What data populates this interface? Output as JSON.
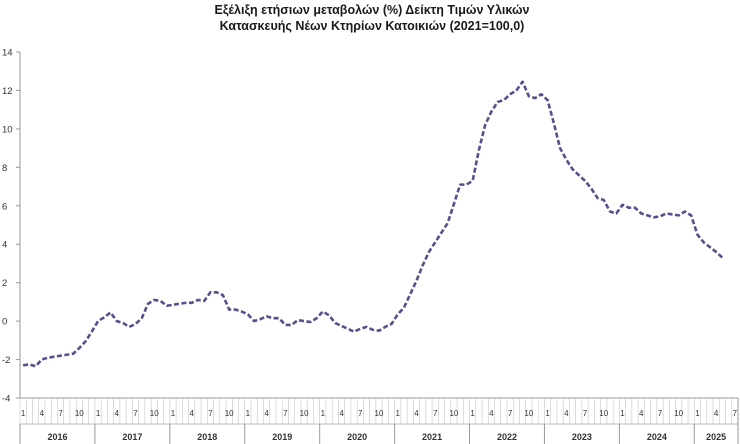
{
  "chart_data": {
    "type": "line",
    "title_line1": "Εξέλιξη ετήσιων μεταβολών (%) Δείκτη Τιμών Υλικών",
    "title_line2": "Κατασκευής Νέων Κτηρίων Κατοικιών (2021=100,0)",
    "ylim": [
      -4,
      14
    ],
    "yticks": [
      "-4",
      "-2",
      "0",
      "2",
      "4",
      "6",
      "8",
      "10",
      "12",
      "14"
    ],
    "month_tick_labels": [
      "1",
      "4",
      "7",
      "10"
    ],
    "years": [
      "2016",
      "2017",
      "2018",
      "2019",
      "2020",
      "2021",
      "2022",
      "2023",
      "2024",
      "2025"
    ],
    "grid": false,
    "legend": "none",
    "series": [
      {
        "color": "#5a4e8c",
        "values": [
          -2.3,
          -2.25,
          -2.35,
          -2.0,
          -1.9,
          -1.85,
          -1.8,
          -1.75,
          -1.7,
          -1.4,
          -1.05,
          -0.55,
          0.0,
          0.2,
          0.45,
          0.0,
          -0.1,
          -0.3,
          -0.15,
          0.15,
          0.9,
          1.1,
          1.05,
          0.8,
          0.85,
          0.9,
          0.95,
          0.95,
          1.1,
          1.05,
          1.5,
          1.5,
          1.35,
          0.6,
          0.6,
          0.5,
          0.35,
          0.0,
          0.1,
          0.25,
          0.15,
          0.15,
          -0.2,
          -0.2,
          0.05,
          0.0,
          -0.05,
          0.15,
          0.5,
          0.3,
          -0.1,
          -0.25,
          -0.4,
          -0.55,
          -0.4,
          -0.3,
          -0.45,
          -0.5,
          -0.3,
          -0.15,
          0.35,
          0.7,
          1.4,
          2.1,
          2.9,
          3.6,
          4.1,
          4.6,
          5.1,
          6.1,
          7.1,
          7.1,
          7.3,
          8.9,
          10.2,
          10.9,
          11.4,
          11.5,
          11.8,
          12.0,
          12.45,
          11.7,
          11.6,
          11.8,
          11.5,
          10.3,
          9.0,
          8.4,
          7.9,
          7.6,
          7.3,
          6.9,
          6.4,
          6.3,
          5.7,
          5.6,
          6.05,
          5.9,
          5.9,
          5.6,
          5.5,
          5.4,
          5.45,
          5.6,
          5.55,
          5.5,
          5.7,
          5.5,
          4.5,
          4.1,
          3.85,
          3.6,
          3.3
        ]
      }
    ]
  }
}
